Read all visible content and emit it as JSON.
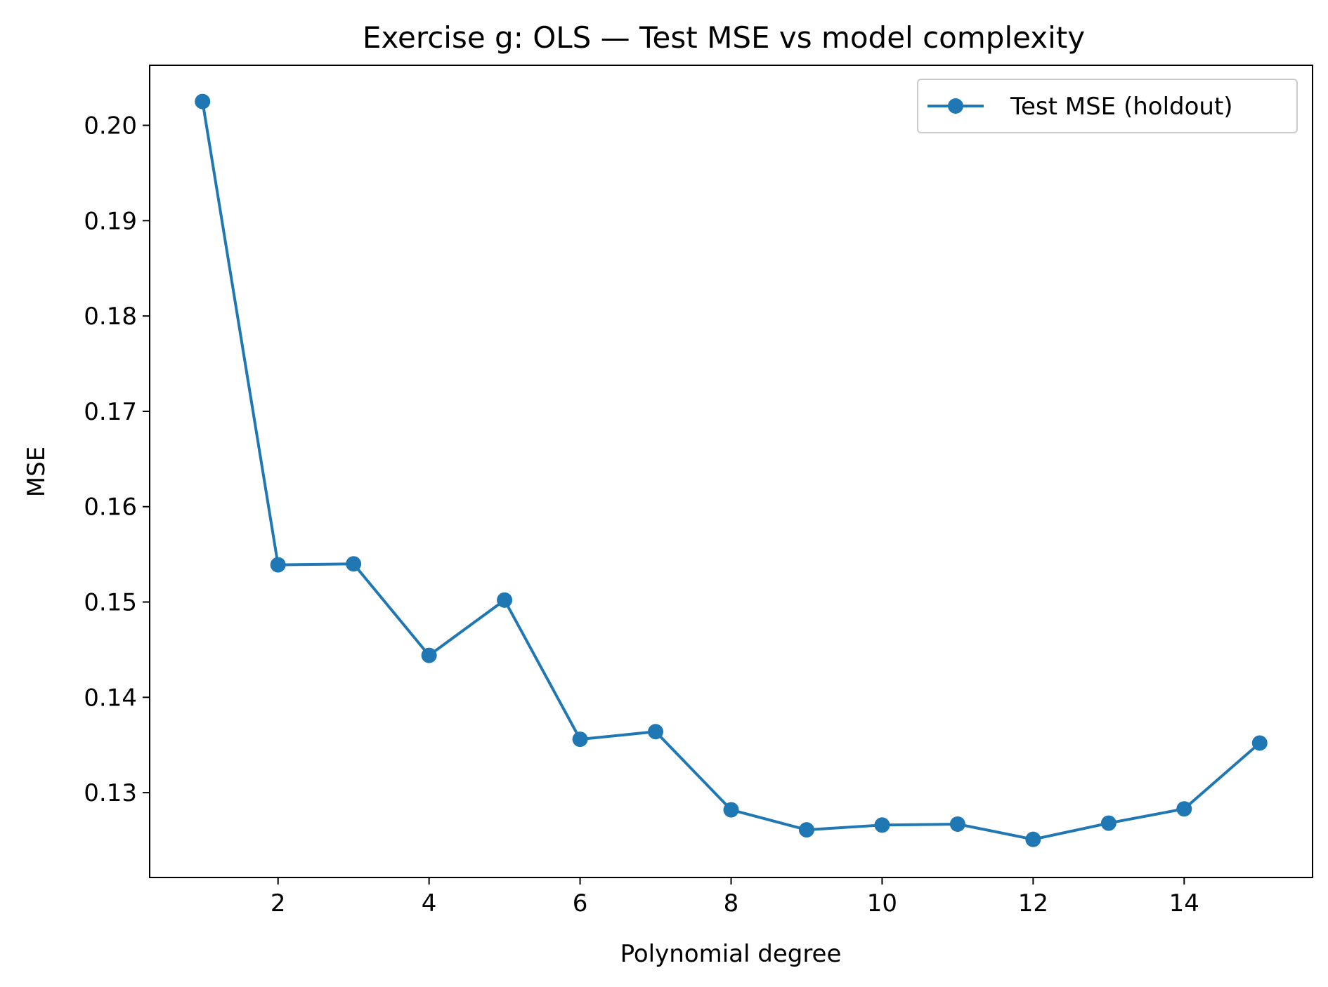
{
  "chart_data": {
    "type": "line",
    "title": "Exercise g: OLS — Test MSE vs model complexity",
    "xlabel": "Polynomial degree",
    "ylabel": "MSE",
    "xlim": [
      0.3,
      15.7
    ],
    "ylim": [
      0.1211,
      0.2063
    ],
    "xticks": [
      2,
      4,
      6,
      8,
      10,
      12,
      14
    ],
    "xtick_labels": [
      "2",
      "4",
      "6",
      "8",
      "10",
      "12",
      "14"
    ],
    "yticks": [
      0.13,
      0.14,
      0.15,
      0.16,
      0.17,
      0.18,
      0.19,
      0.2
    ],
    "ytick_labels": [
      "0.13",
      "0.14",
      "0.15",
      "0.16",
      "0.17",
      "0.18",
      "0.19",
      "0.20"
    ],
    "grid": false,
    "legend_position": "top-right",
    "series": [
      {
        "name": "Test MSE (holdout)",
        "color": "#1f77b4",
        "marker": "circle",
        "x": [
          1,
          2,
          3,
          4,
          5,
          6,
          7,
          8,
          9,
          10,
          11,
          12,
          13,
          14,
          15
        ],
        "y": [
          0.2025,
          0.1539,
          0.154,
          0.1444,
          0.1502,
          0.1356,
          0.1364,
          0.1282,
          0.1261,
          0.1266,
          0.1267,
          0.1251,
          0.1268,
          0.1283,
          0.1352
        ]
      }
    ]
  }
}
